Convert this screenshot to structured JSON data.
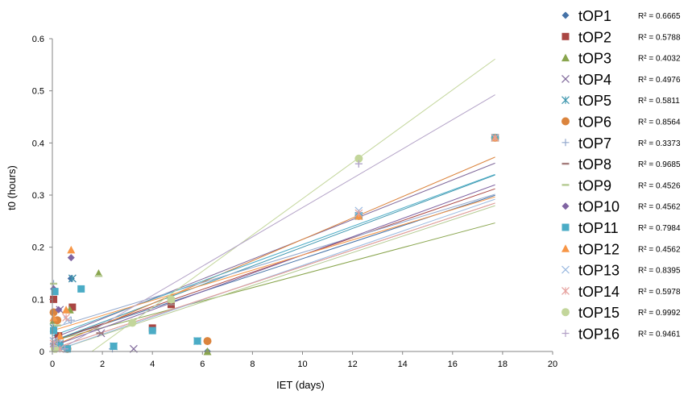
{
  "chart_data": {
    "type": "scatter",
    "title": "",
    "xlabel": "IET (days)",
    "ylabel": "t0 (hours)",
    "xlim": [
      0,
      20
    ],
    "ylim": [
      0,
      0.6
    ],
    "xticks": [
      "0",
      "2",
      "4",
      "6",
      "8",
      "10",
      "12",
      "14",
      "16",
      "18",
      "20"
    ],
    "yticks": [
      "0",
      "0.1",
      "0.2",
      "0.3",
      "0.4",
      "0.5",
      "0.6"
    ],
    "legend_position": "right",
    "series": [
      {
        "name": "tOP1",
        "r2_label": "R² = 0.6665",
        "color": "#4572A7",
        "marker": "diamond",
        "points": [
          [
            0.05,
            0.01
          ],
          [
            0.2,
            0.03
          ],
          [
            0.75,
            0.14
          ],
          [
            6.2,
            0.0
          ],
          [
            12.25,
            0.26
          ],
          [
            17.7,
            0.41
          ]
        ],
        "trend": [
          0.02,
          0.0158
        ]
      },
      {
        "name": "tOP2",
        "r2_label": "R² = 0.5788",
        "color": "#AA4643",
        "marker": "square",
        "points": [
          [
            0.05,
            0.1
          ],
          [
            0.25,
            0.03
          ],
          [
            0.8,
            0.085
          ],
          [
            4.0,
            0.045
          ],
          [
            4.75,
            0.09
          ],
          [
            12.25,
            0.26
          ],
          [
            17.7,
            0.41
          ]
        ],
        "trend": [
          0.02,
          0.0165
        ]
      },
      {
        "name": "tOP3",
        "r2_label": "R² = 0.4032",
        "color": "#89A54E",
        "marker": "triangle",
        "points": [
          [
            0.05,
            0.06
          ],
          [
            0.2,
            0.02
          ],
          [
            0.7,
            0.08
          ],
          [
            1.85,
            0.15
          ],
          [
            6.2,
            0.0
          ],
          [
            12.25,
            0.26
          ],
          [
            17.7,
            0.41
          ]
        ],
        "trend": [
          0.02,
          0.0128
        ]
      },
      {
        "name": "tOP4",
        "r2_label": "R² = 0.4976",
        "color": "#80699B",
        "marker": "x",
        "points": [
          [
            0.05,
            0.02
          ],
          [
            0.3,
            0.08
          ],
          [
            0.8,
            0.14
          ],
          [
            1.95,
            0.035
          ],
          [
            3.25,
            0.005
          ],
          [
            12.25,
            0.26
          ],
          [
            17.7,
            0.41
          ]
        ],
        "trend": [
          0.025,
          0.019
        ]
      },
      {
        "name": "tOP5",
        "r2_label": "R² = 0.5811",
        "color": "#3D96AE",
        "marker": "asterisk",
        "points": [
          [
            0.05,
            0.045
          ],
          [
            0.3,
            0.015
          ],
          [
            0.8,
            0.14
          ],
          [
            2.45,
            0.01
          ],
          [
            5.8,
            0.02
          ],
          [
            12.25,
            0.26
          ],
          [
            17.7,
            0.41
          ]
        ],
        "trend": [
          0.02,
          0.018
        ]
      },
      {
        "name": "tOP6",
        "r2_label": "R² = 0.8564",
        "color": "#DB843D",
        "marker": "circle",
        "points": [
          [
            0.05,
            0.075
          ],
          [
            0.2,
            0.06
          ],
          [
            0.6,
            0.005
          ],
          [
            6.2,
            0.02
          ],
          [
            12.25,
            0.26
          ],
          [
            17.7,
            0.41
          ]
        ],
        "trend": [
          0.01,
          0.0205
        ]
      },
      {
        "name": "tOP7",
        "r2_label": "R² = 0.3373",
        "color": "#92A8CD",
        "marker": "plus",
        "points": [
          [
            0.05,
            0.13
          ],
          [
            0.3,
            0.02
          ],
          [
            0.75,
            0.06
          ],
          [
            2.4,
            0.005
          ],
          [
            4.75,
            0.095
          ],
          [
            12.25,
            0.36
          ],
          [
            17.7,
            0.41
          ]
        ],
        "trend": [
          0.045,
          0.0145
        ]
      },
      {
        "name": "tOP8",
        "r2_label": "R² = 0.9685",
        "color": "#A47D7C",
        "marker": "dash",
        "points": [
          [
            0.05,
            0.015
          ],
          [
            0.25,
            0.01
          ],
          [
            1.9,
            0.035
          ],
          [
            4.75,
            0.09
          ],
          [
            12.25,
            0.26
          ],
          [
            17.7,
            0.41
          ]
        ],
        "trend": [
          0.005,
          0.0158
        ]
      },
      {
        "name": "tOP9",
        "r2_label": "R² = 0.4526",
        "color": "#B5CA92",
        "marker": "dash",
        "points": [
          [
            0.05,
            0.13
          ],
          [
            0.2,
            0.05
          ],
          [
            1.85,
            0.145
          ],
          [
            3.2,
            0.055
          ],
          [
            4.75,
            0.095
          ],
          [
            12.25,
            0.26
          ],
          [
            17.7,
            0.41
          ]
        ],
        "trend": [
          0.0,
          0.0158
        ]
      },
      {
        "name": "tOP10",
        "r2_label": "R² = 0.4562",
        "color": "#8064A2",
        "marker": "diamond",
        "points": [
          [
            0.05,
            0.12
          ],
          [
            0.25,
            0.08
          ],
          [
            0.75,
            0.18
          ],
          [
            12.25,
            0.26
          ],
          [
            17.7,
            0.41
          ]
        ],
        "trend": [
          0.01,
          0.0175
        ]
      },
      {
        "name": "tOP11",
        "r2_label": "R² = 0.7984",
        "color": "#4BACC6",
        "marker": "square",
        "points": [
          [
            0.05,
            0.04
          ],
          [
            0.1,
            0.115
          ],
          [
            0.3,
            0.01
          ],
          [
            0.6,
            0.005
          ],
          [
            1.15,
            0.12
          ],
          [
            2.45,
            0.01
          ],
          [
            4.0,
            0.04
          ],
          [
            5.8,
            0.02
          ],
          [
            12.25,
            0.26
          ],
          [
            17.7,
            0.41
          ]
        ],
        "trend": [
          0.03,
          0.0175
        ]
      },
      {
        "name": "tOP12",
        "r2_label": "R² = 0.4562",
        "color": "#F79646",
        "marker": "triangle",
        "points": [
          [
            0.05,
            0.065
          ],
          [
            0.3,
            0.03
          ],
          [
            0.75,
            0.195
          ],
          [
            0.55,
            0.08
          ],
          [
            12.25,
            0.26
          ],
          [
            17.7,
            0.41
          ]
        ],
        "trend": [
          0.04,
          0.0145
        ]
      },
      {
        "name": "tOP13",
        "r2_label": "R² = 0.8395",
        "color": "#9BBAE0",
        "marker": "x",
        "points": [
          [
            0.05,
            0.02
          ],
          [
            0.3,
            0.005
          ],
          [
            0.6,
            0.06
          ],
          [
            12.25,
            0.27
          ],
          [
            17.7,
            0.41
          ]
        ],
        "trend": [
          0.0,
          0.0165
        ]
      },
      {
        "name": "tOP14",
        "r2_label": "R² = 0.5978",
        "color": "#E6A09C",
        "marker": "asterisk",
        "points": [
          [
            0.05,
            0.015
          ],
          [
            0.3,
            0.005
          ],
          [
            0.55,
            0.065
          ],
          [
            12.25,
            0.265
          ],
          [
            17.7,
            0.41
          ]
        ],
        "trend": [
          0.005,
          0.0158
        ]
      },
      {
        "name": "tOP15",
        "r2_label": "R² = 0.9992",
        "color": "#C3D69B",
        "marker": "circle",
        "points": [
          [
            0.1,
            0.005
          ],
          [
            3.2,
            0.055
          ],
          [
            4.75,
            0.1
          ],
          [
            12.25,
            0.37
          ]
        ],
        "trend": [
          -0.055,
          0.0348
        ]
      },
      {
        "name": "tOP16",
        "r2_label": "R² = 0.9461",
        "color": "#B3A2C7",
        "marker": "plus",
        "points": [
          [
            0.05,
            0.01
          ],
          [
            0.2,
            0.02
          ],
          [
            0.5,
            0.005
          ],
          [
            12.25,
            0.36
          ]
        ],
        "trend": [
          -0.005,
          0.0281
        ]
      }
    ]
  }
}
